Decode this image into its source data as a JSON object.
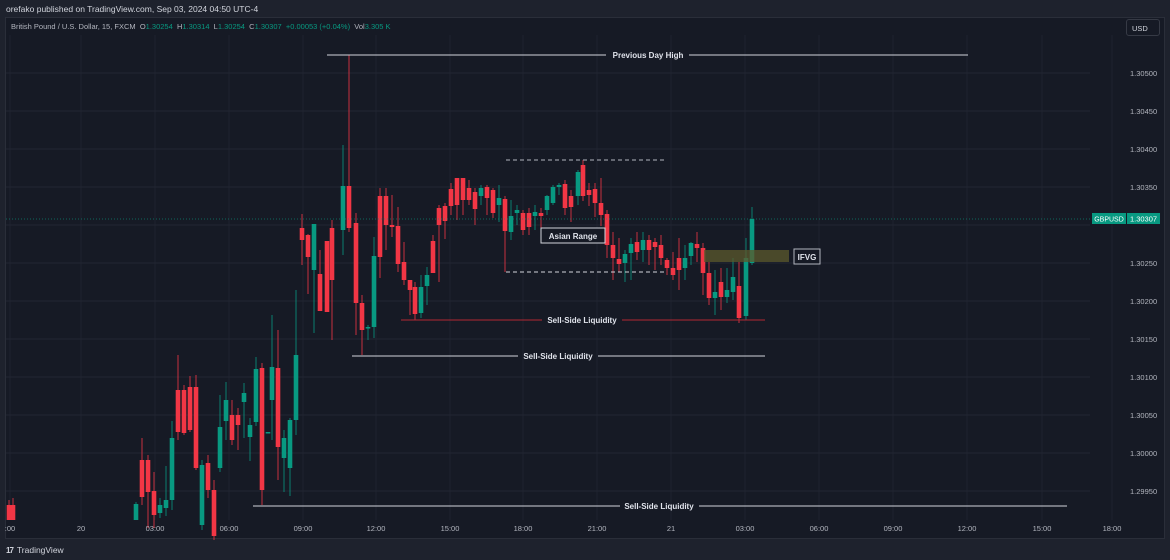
{
  "header": {
    "publish_line": "orefako published on TradingView.com, Sep 03, 2024 04:50 UTC-4"
  },
  "legend": {
    "symbol": "British Pound / U.S. Dollar, 15, FXCM",
    "open_label": "O",
    "open": "1.30254",
    "high_label": "H",
    "high": "1.30314",
    "low_label": "L",
    "low": "1.30254",
    "close_label": "C",
    "close": "1.30307",
    "change": "+0.00053 (+0.04%)",
    "vol_label": "Vol",
    "vol": "3.305 K"
  },
  "currency_button": "USD",
  "price_axis": {
    "ticks": [
      "1.30500",
      "1.30450",
      "1.30400",
      "1.30350",
      "1.30250",
      "1.30200",
      "1.30150",
      "1.30100",
      "1.30050",
      "1.30000",
      "1.29950"
    ],
    "last_price_symbol": "GBPUSD",
    "last_price": "1.30307"
  },
  "time_axis": {
    "ticks": [
      ":00",
      "20",
      "03:00",
      "06:00",
      "09:00",
      "12:00",
      "15:00",
      "18:00",
      "21:00",
      "21",
      "03:00",
      "06:00",
      "09:00",
      "12:00",
      "15:00",
      "18:00"
    ]
  },
  "annotations": {
    "previous_day_high": "Previous Day High",
    "asian_range": "Asian Range",
    "sell_side_liquidity_1": "Sell-Side Liquidity",
    "sell_side_liquidity_2": "Sell-Side Liquidity",
    "sell_side_liquidity_3": "Sell-Side Liquidity",
    "ifvg": "IFVG"
  },
  "footer": {
    "brand": "TradingView"
  },
  "colors": {
    "up": "#089981",
    "down": "#f23645",
    "background": "#161a25",
    "ifvg_zone": "#5c5a2c",
    "sell_side_red": "#b22833"
  },
  "chart_data": {
    "type": "candlestick",
    "title": "British Pound / U.S. Dollar, 15, FXCM",
    "symbol": "GBPUSD",
    "timeframe": "15m",
    "ylim": [
      1.2992,
      1.3054
    ],
    "last": {
      "open": 1.30254,
      "high": 1.30314,
      "low": 1.30254,
      "close": 1.30307
    },
    "levels": [
      {
        "label": "Previous Day High",
        "price": 1.30521
      },
      {
        "label": "Asian Range high",
        "price": 1.30384
      },
      {
        "label": "Asian Range low",
        "price": 1.30236
      },
      {
        "label": "Sell-Side Liquidity",
        "price": 1.30172
      },
      {
        "label": "Sell-Side Liquidity",
        "price": 1.30124
      },
      {
        "label": "Sell-Side Liquidity",
        "price": 1.29929
      },
      {
        "label": "IFVG zone",
        "from": 1.30254,
        "to": 1.30267
      }
    ]
  }
}
